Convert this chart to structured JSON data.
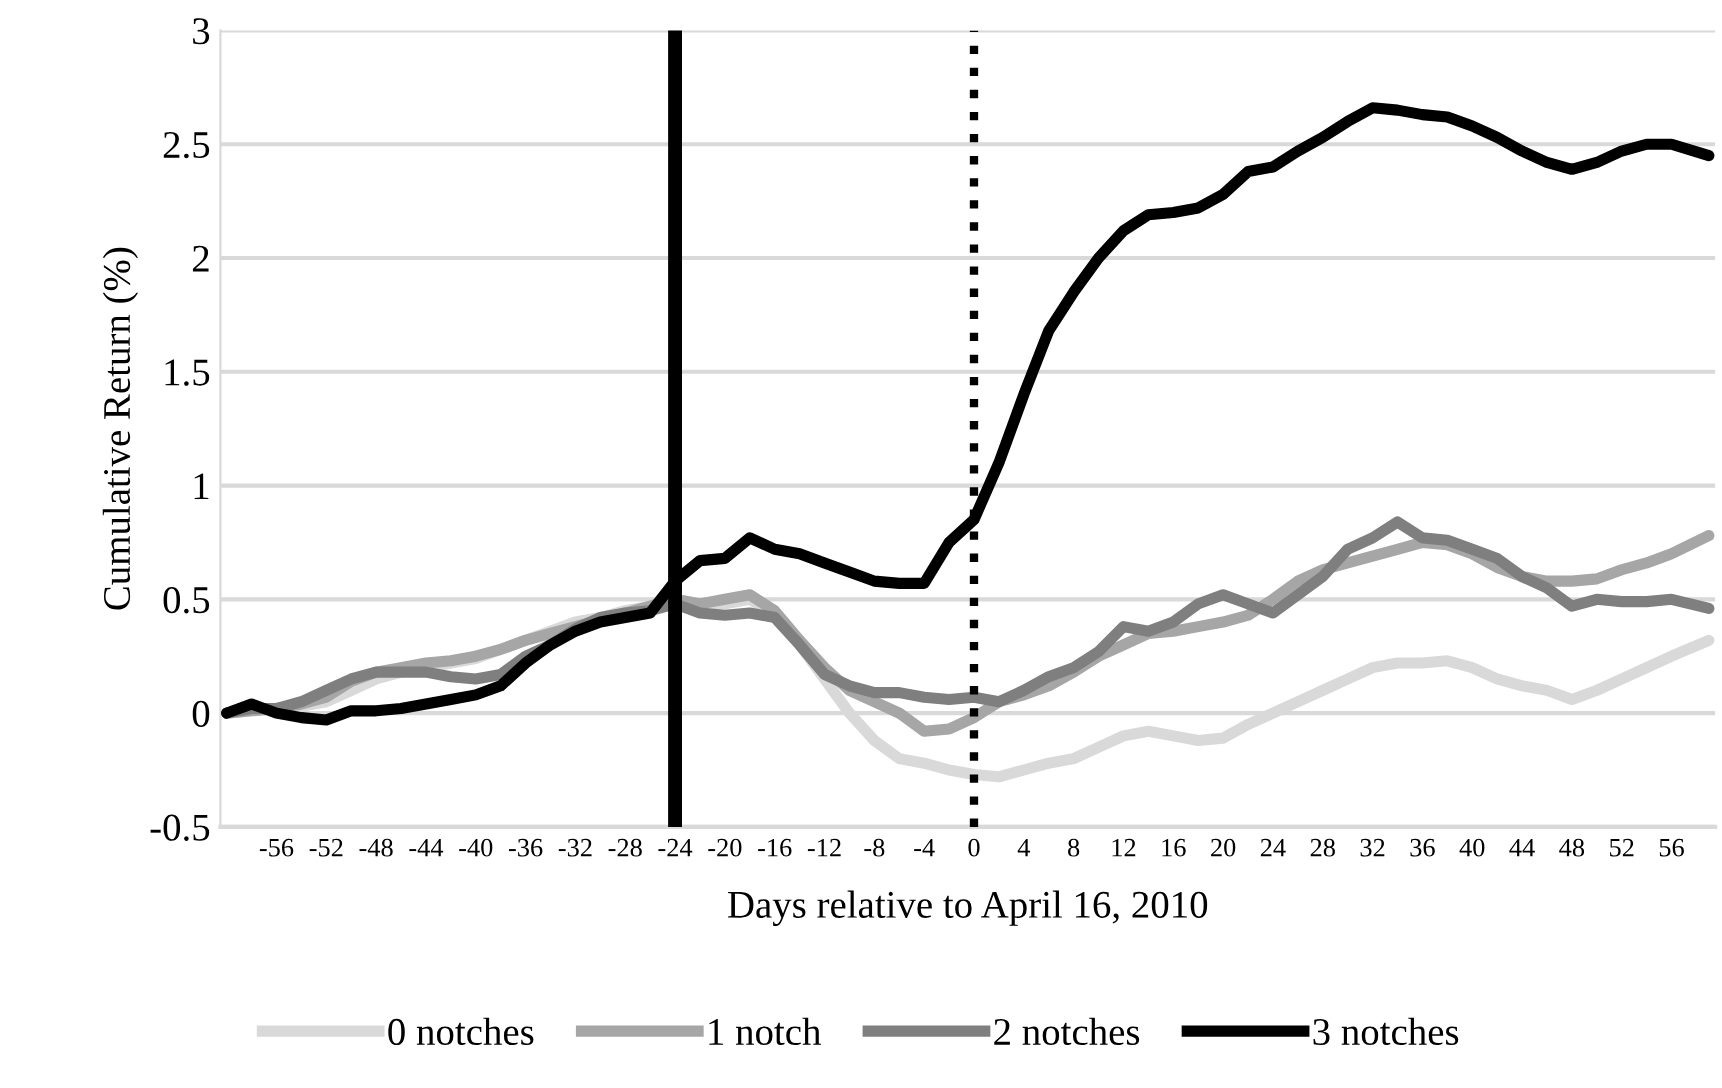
{
  "chart_data": {
    "type": "line",
    "xlabel": "Days relative to April 16, 2010",
    "ylabel": "Cumulative Return (%)",
    "x": [
      -60,
      -58,
      -56,
      -54,
      -52,
      -50,
      -48,
      -46,
      -44,
      -42,
      -40,
      -38,
      -36,
      -34,
      -32,
      -30,
      -28,
      -26,
      -24,
      -22,
      -20,
      -18,
      -16,
      -14,
      -12,
      -10,
      -8,
      -6,
      -4,
      -2,
      0,
      2,
      4,
      6,
      8,
      10,
      12,
      14,
      16,
      18,
      20,
      22,
      24,
      26,
      28,
      30,
      32,
      34,
      36,
      38,
      40,
      42,
      44,
      46,
      48,
      50,
      52,
      54,
      56,
      59
    ],
    "series": [
      {
        "name": "0 notches",
        "color": "#d9d9d9",
        "values": [
          0,
          0.01,
          0.02,
          0.03,
          0.05,
          0.1,
          0.15,
          0.18,
          0.2,
          0.22,
          0.24,
          0.28,
          0.32,
          0.36,
          0.4,
          0.42,
          0.45,
          0.47,
          0.5,
          0.48,
          0.48,
          0.5,
          0.44,
          0.3,
          0.15,
          0.0,
          -0.12,
          -0.2,
          -0.22,
          -0.25,
          -0.27,
          -0.28,
          -0.25,
          -0.22,
          -0.2,
          -0.15,
          -0.1,
          -0.08,
          -0.1,
          -0.12,
          -0.11,
          -0.05,
          0.0,
          0.05,
          0.1,
          0.15,
          0.2,
          0.22,
          0.22,
          0.23,
          0.2,
          0.15,
          0.12,
          0.1,
          0.06,
          0.1,
          0.15,
          0.2,
          0.25,
          0.32
        ]
      },
      {
        "name": "1 notch",
        "color": "#a6a6a6",
        "values": [
          0,
          0.01,
          0.02,
          0.04,
          0.07,
          0.14,
          0.18,
          0.2,
          0.22,
          0.23,
          0.25,
          0.28,
          0.32,
          0.35,
          0.38,
          0.41,
          0.44,
          0.47,
          0.5,
          0.48,
          0.5,
          0.52,
          0.45,
          0.32,
          0.2,
          0.1,
          0.05,
          0.0,
          -0.08,
          -0.07,
          -0.02,
          0.05,
          0.08,
          0.12,
          0.18,
          0.25,
          0.3,
          0.35,
          0.36,
          0.38,
          0.4,
          0.43,
          0.5,
          0.58,
          0.63,
          0.66,
          0.69,
          0.72,
          0.75,
          0.74,
          0.7,
          0.64,
          0.6,
          0.58,
          0.58,
          0.59,
          0.63,
          0.66,
          0.7,
          0.78
        ]
      },
      {
        "name": "2 notches",
        "color": "#7f7f7f",
        "values": [
          0,
          0.02,
          0.02,
          0.05,
          0.1,
          0.15,
          0.18,
          0.18,
          0.18,
          0.16,
          0.15,
          0.17,
          0.25,
          0.3,
          0.37,
          0.42,
          0.44,
          0.45,
          0.48,
          0.44,
          0.43,
          0.44,
          0.42,
          0.3,
          0.17,
          0.12,
          0.09,
          0.09,
          0.07,
          0.06,
          0.07,
          0.05,
          0.1,
          0.16,
          0.2,
          0.27,
          0.38,
          0.36,
          0.4,
          0.48,
          0.52,
          0.48,
          0.44,
          0.52,
          0.6,
          0.72,
          0.77,
          0.84,
          0.77,
          0.76,
          0.72,
          0.68,
          0.6,
          0.55,
          0.47,
          0.5,
          0.49,
          0.49,
          0.5,
          0.46
        ]
      },
      {
        "name": "3 notches",
        "color": "#000000",
        "values": [
          0,
          0.04,
          0,
          -0.02,
          -0.03,
          0.01,
          0.01,
          0.02,
          0.04,
          0.06,
          0.08,
          0.12,
          0.22,
          0.3,
          0.36,
          0.4,
          0.42,
          0.44,
          0.58,
          0.67,
          0.68,
          0.77,
          0.72,
          0.7,
          0.66,
          0.62,
          0.58,
          0.57,
          0.57,
          0.75,
          0.85,
          1.1,
          1.4,
          1.68,
          1.85,
          2.0,
          2.12,
          2.19,
          2.2,
          2.22,
          2.28,
          2.38,
          2.4,
          2.47,
          2.53,
          2.6,
          2.66,
          2.65,
          2.63,
          2.62,
          2.58,
          2.53,
          2.47,
          2.42,
          2.39,
          2.42,
          2.47,
          2.5,
          2.5,
          2.45
        ]
      }
    ],
    "xlim": [
      -60.5,
      59.5
    ],
    "xticks": [
      -56,
      -52,
      -48,
      -44,
      -40,
      -36,
      -32,
      -28,
      -24,
      -20,
      -16,
      -12,
      -8,
      -4,
      0,
      4,
      8,
      12,
      16,
      20,
      24,
      28,
      32,
      36,
      40,
      44,
      48,
      52,
      56
    ],
    "ylim": [
      -0.5,
      3
    ],
    "yticks": [
      -0.5,
      0,
      0.5,
      1,
      1.5,
      2,
      2.5,
      3
    ],
    "ref_lines": [
      {
        "axis": "x",
        "value": -24,
        "color": "#000000",
        "line_style": "solid"
      },
      {
        "axis": "x",
        "value": 0,
        "color": "#000000",
        "line_style": "dotted"
      }
    ],
    "grid": "y",
    "legend": "bottom",
    "marker": "none",
    "line_style": "solid"
  }
}
